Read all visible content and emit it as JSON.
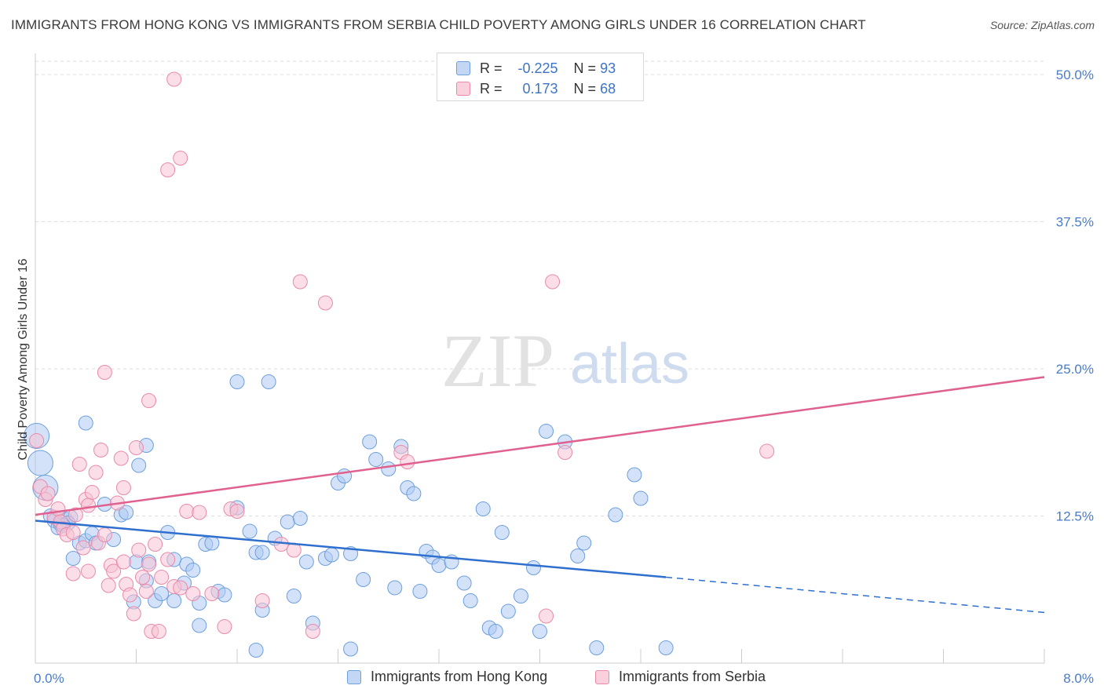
{
  "title": "IMMIGRANTS FROM HONG KONG VS IMMIGRANTS FROM SERBIA CHILD POVERTY AMONG GIRLS UNDER 16 CORRELATION CHART",
  "source": "Source: ZipAtlas.com",
  "watermark": {
    "zip": "ZIP",
    "atlas": "atlas"
  },
  "legend": {
    "rows": [
      {
        "r_label": "R =",
        "r_value": "-0.225",
        "n_label": "N =",
        "n_value": "93"
      },
      {
        "r_label": "R =",
        "r_value": " 0.173",
        "n_label": "N =",
        "n_value": "68"
      }
    ]
  },
  "colors": {
    "hongkong_fill": "#aecbf2",
    "hongkong_stroke": "#6d9fdd",
    "hongkong_line": "#2f6fce",
    "serbia_fill": "#f8c3d3",
    "serbia_stroke": "#e98aaa",
    "serbia_line": "#e0608f",
    "grid": "#dddddd",
    "tick_text": "#4a7cc7"
  },
  "chart_data": {
    "type": "scatter",
    "title": "IMMIGRANTS FROM HONG KONG VS IMMIGRANTS FROM SERBIA CHILD POVERTY AMONG GIRLS UNDER 16 CORRELATION CHART",
    "xlabel": "",
    "ylabel": "Child Poverty Among Girls Under 16",
    "xlim": [
      0,
      8
    ],
    "ylim": [
      0,
      50
    ],
    "x_tick_labels": [
      "0.0%",
      "8.0%"
    ],
    "y_ticks": [
      12.5,
      25.0,
      37.5,
      50.0
    ],
    "y_tick_labels": [
      "12.5%",
      "25.0%",
      "37.5%",
      "50.0%"
    ],
    "series": [
      {
        "name": "Immigrants from Hong Kong",
        "r": -0.225,
        "n": 93,
        "trend": {
          "x0": 0.0,
          "y0": 12.1,
          "x1": 5.0,
          "y1": 7.3,
          "dash_to_x": 8.0,
          "dash_to_y": 4.3
        },
        "points": [
          [
            0.01,
            19.3
          ],
          [
            0.04,
            17.0
          ],
          [
            0.08,
            14.9
          ],
          [
            0.12,
            12.5
          ],
          [
            0.15,
            12.1
          ],
          [
            0.18,
            11.5
          ],
          [
            0.2,
            11.8
          ],
          [
            0.24,
            12.2
          ],
          [
            0.28,
            12.4
          ],
          [
            0.26,
            11.9
          ],
          [
            0.22,
            11.7
          ],
          [
            0.3,
            8.9
          ],
          [
            0.35,
            10.2
          ],
          [
            0.4,
            10.4
          ],
          [
            0.45,
            11.0
          ],
          [
            0.48,
            10.2
          ],
          [
            0.55,
            13.5
          ],
          [
            0.62,
            10.5
          ],
          [
            0.68,
            12.6
          ],
          [
            0.72,
            12.8
          ],
          [
            0.78,
            5.2
          ],
          [
            0.8,
            8.6
          ],
          [
            0.88,
            7.0
          ],
          [
            0.9,
            8.6
          ],
          [
            0.95,
            5.3
          ],
          [
            1.0,
            5.9
          ],
          [
            1.05,
            11.1
          ],
          [
            1.1,
            5.3
          ],
          [
            1.1,
            8.8
          ],
          [
            1.18,
            6.8
          ],
          [
            1.2,
            8.4
          ],
          [
            1.25,
            7.9
          ],
          [
            1.3,
            5.1
          ],
          [
            1.35,
            10.1
          ],
          [
            1.4,
            10.2
          ],
          [
            1.45,
            6.1
          ],
          [
            1.5,
            5.8
          ],
          [
            1.6,
            13.2
          ],
          [
            1.7,
            11.2
          ],
          [
            1.75,
            9.4
          ],
          [
            1.8,
            4.5
          ],
          [
            1.8,
            9.4
          ],
          [
            1.9,
            10.6
          ],
          [
            2.0,
            12.0
          ],
          [
            2.05,
            5.7
          ],
          [
            2.1,
            12.3
          ],
          [
            2.15,
            8.6
          ],
          [
            2.2,
            3.4
          ],
          [
            2.3,
            8.9
          ],
          [
            2.35,
            9.2
          ],
          [
            2.4,
            15.3
          ],
          [
            2.45,
            15.9
          ],
          [
            2.5,
            9.3
          ],
          [
            2.6,
            7.1
          ],
          [
            2.65,
            18.8
          ],
          [
            2.7,
            17.3
          ],
          [
            2.8,
            16.5
          ],
          [
            2.85,
            6.4
          ],
          [
            2.9,
            18.4
          ],
          [
            2.95,
            14.9
          ],
          [
            3.0,
            14.4
          ],
          [
            3.05,
            6.1
          ],
          [
            3.1,
            9.5
          ],
          [
            3.15,
            9.0
          ],
          [
            3.2,
            8.3
          ],
          [
            3.3,
            8.6
          ],
          [
            3.4,
            6.8
          ],
          [
            3.45,
            5.3
          ],
          [
            3.55,
            13.1
          ],
          [
            3.6,
            3.0
          ],
          [
            3.65,
            2.7
          ],
          [
            3.7,
            11.1
          ],
          [
            3.75,
            4.4
          ],
          [
            3.85,
            5.7
          ],
          [
            3.95,
            8.1
          ],
          [
            4.0,
            2.7
          ],
          [
            4.05,
            19.7
          ],
          [
            4.2,
            18.8
          ],
          [
            4.3,
            9.1
          ],
          [
            4.35,
            10.2
          ],
          [
            4.6,
            12.6
          ],
          [
            4.75,
            16.0
          ],
          [
            4.8,
            14.0
          ],
          [
            5.0,
            1.3
          ],
          [
            1.6,
            23.9
          ],
          [
            1.85,
            23.9
          ],
          [
            0.4,
            20.4
          ],
          [
            0.88,
            18.5
          ],
          [
            0.82,
            16.8
          ],
          [
            1.3,
            3.2
          ],
          [
            1.75,
            1.1
          ],
          [
            2.5,
            1.2
          ],
          [
            4.45,
            1.3
          ]
        ]
      },
      {
        "name": "Immigrants from Serbia",
        "r": 0.173,
        "n": 68,
        "trend": {
          "x0": 0.0,
          "y0": 12.6,
          "x1": 8.0,
          "y1": 24.3
        },
        "points": [
          [
            0.01,
            18.9
          ],
          [
            0.04,
            15.0
          ],
          [
            0.08,
            13.9
          ],
          [
            0.1,
            14.4
          ],
          [
            0.15,
            12.4
          ],
          [
            0.18,
            13.1
          ],
          [
            0.2,
            12.0
          ],
          [
            0.22,
            11.4
          ],
          [
            0.25,
            10.9
          ],
          [
            0.3,
            7.6
          ],
          [
            0.32,
            12.6
          ],
          [
            0.35,
            16.9
          ],
          [
            0.38,
            9.8
          ],
          [
            0.4,
            13.9
          ],
          [
            0.42,
            7.8
          ],
          [
            0.45,
            14.5
          ],
          [
            0.48,
            16.2
          ],
          [
            0.5,
            10.2
          ],
          [
            0.52,
            18.1
          ],
          [
            0.55,
            10.9
          ],
          [
            0.58,
            6.6
          ],
          [
            0.6,
            8.3
          ],
          [
            0.62,
            7.8
          ],
          [
            0.65,
            13.6
          ],
          [
            0.68,
            17.4
          ],
          [
            0.7,
            8.6
          ],
          [
            0.72,
            6.7
          ],
          [
            0.75,
            5.8
          ],
          [
            0.78,
            4.2
          ],
          [
            0.8,
            18.3
          ],
          [
            0.82,
            9.6
          ],
          [
            0.85,
            7.3
          ],
          [
            0.88,
            6.1
          ],
          [
            0.9,
            8.4
          ],
          [
            0.92,
            2.7
          ],
          [
            0.95,
            10.1
          ],
          [
            0.98,
            2.7
          ],
          [
            1.0,
            7.3
          ],
          [
            1.05,
            8.8
          ],
          [
            1.1,
            6.5
          ],
          [
            1.15,
            6.4
          ],
          [
            1.2,
            12.9
          ],
          [
            1.25,
            5.9
          ],
          [
            1.4,
            5.9
          ],
          [
            1.5,
            3.1
          ],
          [
            1.55,
            13.1
          ],
          [
            1.6,
            12.9
          ],
          [
            1.8,
            5.3
          ],
          [
            1.95,
            10.1
          ],
          [
            2.05,
            9.6
          ],
          [
            2.2,
            2.7
          ],
          [
            2.9,
            17.9
          ],
          [
            2.95,
            17.1
          ],
          [
            4.05,
            4.0
          ],
          [
            4.2,
            17.9
          ],
          [
            5.8,
            18.0
          ],
          [
            0.55,
            24.7
          ],
          [
            0.9,
            22.3
          ],
          [
            2.1,
            32.4
          ],
          [
            2.3,
            30.6
          ],
          [
            4.1,
            32.4
          ],
          [
            1.15,
            42.9
          ],
          [
            1.05,
            41.9
          ],
          [
            1.1,
            49.6
          ],
          [
            0.42,
            13.4
          ],
          [
            0.3,
            11.1
          ],
          [
            0.7,
            14.9
          ],
          [
            1.3,
            12.8
          ]
        ]
      }
    ]
  },
  "bottom_legend": [
    {
      "label": "Immigrants from Hong Kong"
    },
    {
      "label": "Immigrants from Serbia"
    }
  ]
}
